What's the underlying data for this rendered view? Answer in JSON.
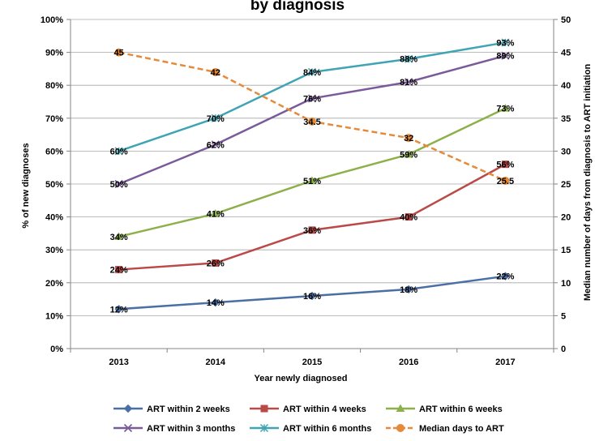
{
  "chart_data": {
    "type": "line",
    "title": "by diagnosis",
    "xlabel": "Year newly diagnosed",
    "ylabel": "% of new diagnoses",
    "y2label": "Median number of days from diagnosis to ART initiation",
    "categories": [
      "2013",
      "2014",
      "2015",
      "2016",
      "2017"
    ],
    "ylim": [
      0,
      100
    ],
    "y2lim": [
      0,
      50
    ],
    "yticks": [
      "0%",
      "10%",
      "20%",
      "30%",
      "40%",
      "50%",
      "60%",
      "70%",
      "80%",
      "90%",
      "100%"
    ],
    "y2ticks": [
      "0",
      "5",
      "10",
      "15",
      "20",
      "25",
      "30",
      "35",
      "40",
      "45",
      "50"
    ],
    "grid": "horizontal",
    "legend_position": "bottom",
    "series": [
      {
        "name": "ART within 2 weeks",
        "axis": "left",
        "values": [
          12,
          14,
          16,
          18,
          22
        ],
        "labels": [
          "12%",
          "14%",
          "16%",
          "18%",
          "22%"
        ],
        "color": "#4A6FA5",
        "marker": "diamond",
        "dash": "solid"
      },
      {
        "name": "ART within 4 weeks",
        "axis": "left",
        "values": [
          24,
          26,
          36,
          40,
          56
        ],
        "labels": [
          "24%",
          "26%",
          "36%",
          "40%",
          "56%"
        ],
        "color": "#B94A48",
        "marker": "square",
        "dash": "solid"
      },
      {
        "name": "ART within 6 weeks",
        "axis": "left",
        "values": [
          34,
          41,
          51,
          59,
          73
        ],
        "labels": [
          "34%",
          "41%",
          "51%",
          "59%",
          "73%"
        ],
        "color": "#8DB04A",
        "marker": "triangle",
        "dash": "solid"
      },
      {
        "name": "ART within 3 months",
        "axis": "left",
        "values": [
          50,
          62,
          76,
          81,
          89
        ],
        "labels": [
          "50%",
          "62%",
          "76%",
          "81%",
          "89%"
        ],
        "color": "#7A5A9A",
        "marker": "x",
        "dash": "solid"
      },
      {
        "name": "ART within 6 months",
        "axis": "left",
        "values": [
          60,
          70,
          84,
          88,
          93
        ],
        "labels": [
          "60%",
          "70%",
          "84%",
          "88%",
          "93%"
        ],
        "color": "#3FA4B4",
        "marker": "star",
        "dash": "solid"
      },
      {
        "name": "Median days to ART",
        "axis": "right",
        "values": [
          45,
          42,
          34.5,
          32,
          25.5
        ],
        "labels": [
          "45",
          "42",
          "34.5",
          "32",
          "25.5"
        ],
        "color": "#E68A3A",
        "marker": "circle",
        "dash": "dashed"
      }
    ]
  }
}
